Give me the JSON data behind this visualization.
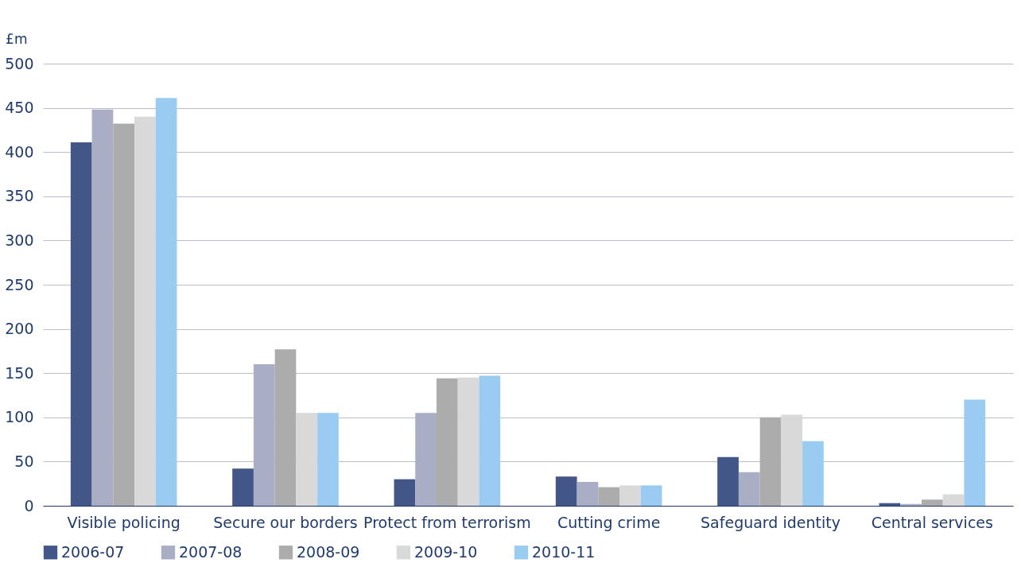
{
  "chart_data": {
    "type": "bar",
    "ylabel": "£m",
    "categories": [
      "Visible policing",
      "Secure our borders",
      "Protect from terrorism",
      "Cutting crime",
      "Safeguard identity",
      "Central services"
    ],
    "series": [
      {
        "name": "2006-07",
        "color": "#435688",
        "values": [
          411,
          42,
          30,
          33,
          55,
          3
        ]
      },
      {
        "name": "2007-08",
        "color": "#a9aec4",
        "values": [
          448,
          160,
          105,
          27,
          38,
          2
        ]
      },
      {
        "name": "2008-09",
        "color": "#acacac",
        "values": [
          432,
          177,
          144,
          21,
          100,
          7
        ]
      },
      {
        "name": "2009-10",
        "color": "#d9d9d9",
        "values": [
          440,
          105,
          145,
          23,
          103,
          13
        ]
      },
      {
        "name": "2010-11",
        "color": "#99ccf0",
        "values": [
          461,
          105,
          147,
          23,
          73,
          120
        ]
      }
    ],
    "ylim": [
      0,
      500
    ],
    "yticks": [
      0,
      50,
      100,
      150,
      200,
      250,
      300,
      350,
      400,
      450,
      500
    ],
    "grid": "y",
    "legend": "bottom"
  }
}
